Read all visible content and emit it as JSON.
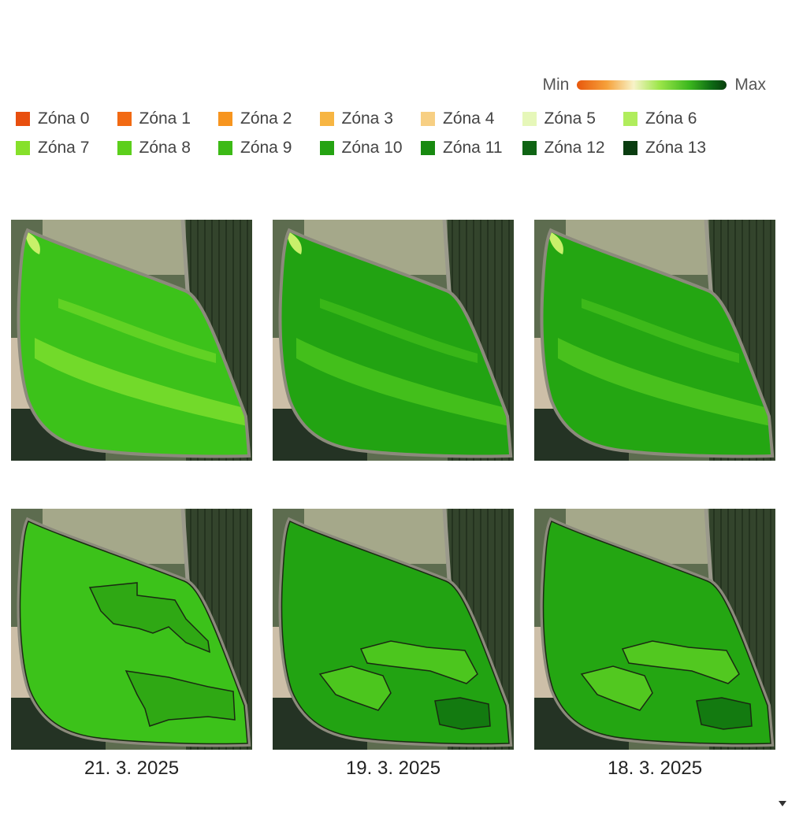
{
  "scale": {
    "min_label": "Min",
    "max_label": "Max"
  },
  "zones": [
    {
      "label": "Zóna 0",
      "color": "#e84f0e"
    },
    {
      "label": "Zóna 1",
      "color": "#f26a13"
    },
    {
      "label": "Zóna 2",
      "color": "#f7951f"
    },
    {
      "label": "Zóna 3",
      "color": "#f7b542"
    },
    {
      "label": "Zóna 4",
      "color": "#f7cf83"
    },
    {
      "label": "Zóna 5",
      "color": "#e6f7b9"
    },
    {
      "label": "Zóna 6",
      "color": "#b0ed5c"
    },
    {
      "label": "Zóna 7",
      "color": "#86e02a"
    },
    {
      "label": "Zóna 8",
      "color": "#5ccf1c"
    },
    {
      "label": "Zóna 9",
      "color": "#3cba16"
    },
    {
      "label": "Zóna 10",
      "color": "#25a312"
    },
    {
      "label": "Zóna 11",
      "color": "#188a10"
    },
    {
      "label": "Zóna 12",
      "color": "#0f6414"
    },
    {
      "label": "Zóna 13",
      "color": "#0a3d10"
    }
  ],
  "maps": [
    {
      "date": "21. 3. 2025",
      "base_color": "#3cc21a",
      "stripe_color": "#7fe02e",
      "zone_fill": "#2fa814",
      "zone_shapes": [
        "upper",
        "lower-band"
      ]
    },
    {
      "date": "19. 3. 2025",
      "base_color": "#22a312",
      "stripe_color": "#4cc61e",
      "zone_fill": "#168c10",
      "zone_shapes": [
        "mid-band",
        "left-band",
        "dark-patch"
      ]
    },
    {
      "date": "18. 3. 2025",
      "base_color": "#24a612",
      "stripe_color": "#52c820",
      "zone_fill": "#168c10",
      "zone_shapes": [
        "mid-band",
        "left-band",
        "dark-patch"
      ]
    }
  ]
}
